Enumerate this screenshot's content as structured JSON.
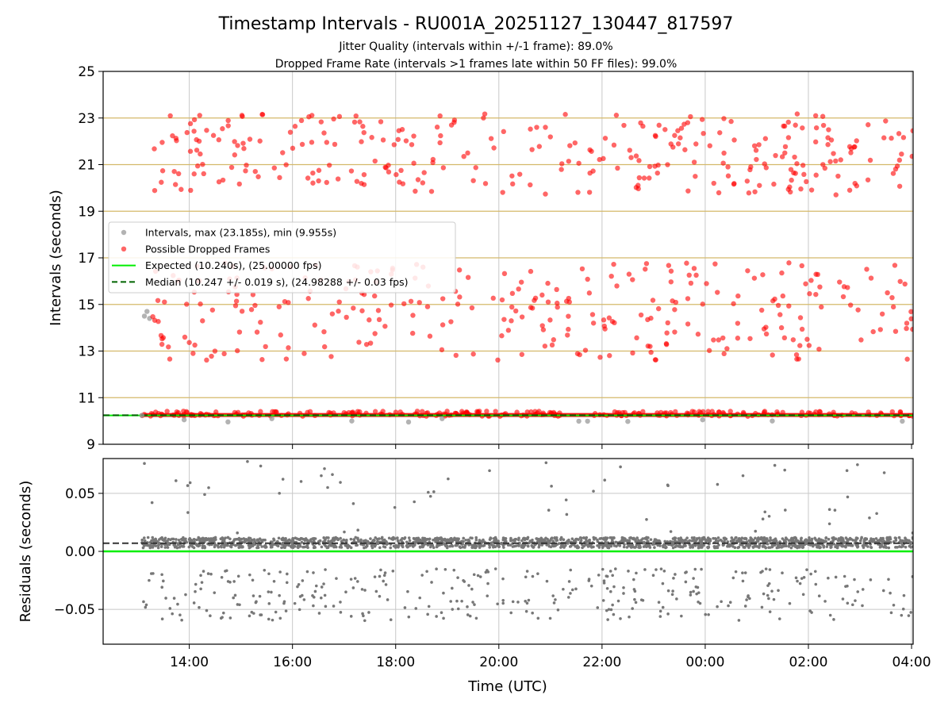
{
  "title": "Timestamp Intervals - RU001A_20251127_130447_817597",
  "subtitle_lines": [
    "Jitter Quality (intervals within +/-1 frame): 89.0%",
    "Dropped Frame Rate (intervals >1 frames late within 50 FF files): 99.0%"
  ],
  "colors": {
    "intervals": "#999999",
    "dropped": "#ff0000",
    "expected": "#00ee00",
    "median": "#006400",
    "residuals": "#777777",
    "hgrid_top": "#d4b96a",
    "grid": "#c8c8c8"
  },
  "chart_data": [
    {
      "type": "scatter",
      "name": "top",
      "ylabel": "Intervals (seconds)",
      "xlim": [
        12.33,
        28.03
      ],
      "ylim": [
        9,
        25
      ],
      "y_ticks": [
        9,
        11,
        13,
        15,
        17,
        19,
        21,
        23,
        25
      ],
      "y_tick_labels": [
        "9",
        "11",
        "13",
        "15",
        "17",
        "19",
        "21",
        "23",
        "25"
      ],
      "x_ticks": [
        14,
        16,
        18,
        20,
        22,
        24,
        26,
        28
      ],
      "grid": true,
      "legend_position": "center-left",
      "legend": [
        {
          "label": "Intervals, max (23.185s), min (9.955s)",
          "kind": "dot",
          "color_key": "intervals"
        },
        {
          "label": "Possible Dropped Frames",
          "kind": "dot",
          "color_key": "dropped"
        },
        {
          "label": "Expected (10.240s), (25.00000 fps)",
          "kind": "line",
          "color_key": "expected"
        },
        {
          "label": "Median (10.247 +/- 0.019 s), (24.98288 +/- 0.03 fps)",
          "kind": "dash",
          "color_key": "median"
        }
      ],
      "expected_y": 10.24,
      "median_y": 10.247,
      "x_start": 13.08,
      "x_end": 28.03,
      "baseline_band": [
        10.17,
        10.34
      ],
      "gray_points": [
        {
          "x": 13.08,
          "y": 10.24
        },
        {
          "x": 13.13,
          "y": 14.5
        },
        {
          "x": 13.18,
          "y": 14.7
        },
        {
          "x": 13.23,
          "y": 14.4
        },
        {
          "x": 13.9,
          "y": 10.05
        },
        {
          "x": 14.75,
          "y": 9.96
        },
        {
          "x": 15.6,
          "y": 10.1
        },
        {
          "x": 17.15,
          "y": 10.0
        },
        {
          "x": 18.25,
          "y": 9.955
        },
        {
          "x": 18.9,
          "y": 10.1
        },
        {
          "x": 21.55,
          "y": 9.99
        },
        {
          "x": 21.72,
          "y": 9.99
        },
        {
          "x": 22.5,
          "y": 9.98
        },
        {
          "x": 23.95,
          "y": 10.05
        },
        {
          "x": 25.3,
          "y": 10.0
        },
        {
          "x": 27.82,
          "y": 9.99
        }
      ],
      "dropped_seed": 20251127,
      "dropped_count_upper": 300,
      "dropped_count_lower": 290,
      "upper_cluster_range": [
        19.7,
        23.2
      ],
      "lower_cluster_range": [
        12.6,
        16.8
      ]
    },
    {
      "type": "scatter",
      "name": "residuals",
      "xlabel": "Time (UTC)",
      "ylabel": "Residuals (seconds)",
      "xlim": [
        12.33,
        28.03
      ],
      "ylim": [
        -0.08,
        0.08
      ],
      "y_ticks": [
        0.05,
        0.0,
        -0.05
      ],
      "y_tick_labels": [
        "0.05",
        "0.00",
        "−0.05"
      ],
      "x_ticks": [
        14,
        16,
        18,
        20,
        22,
        24,
        26,
        28
      ],
      "x_tick_labels": [
        "14:00",
        "16:00",
        "18:00",
        "20:00",
        "22:00",
        "00:00",
        "02:00",
        "04:00"
      ],
      "grid": true,
      "expected_y": 0.0,
      "median_y": 0.007,
      "residual_seed": 817597,
      "residual_count": 2200,
      "main_band": [
        0.003,
        0.012
      ],
      "negative_band": [
        -0.06,
        -0.015
      ]
    }
  ]
}
